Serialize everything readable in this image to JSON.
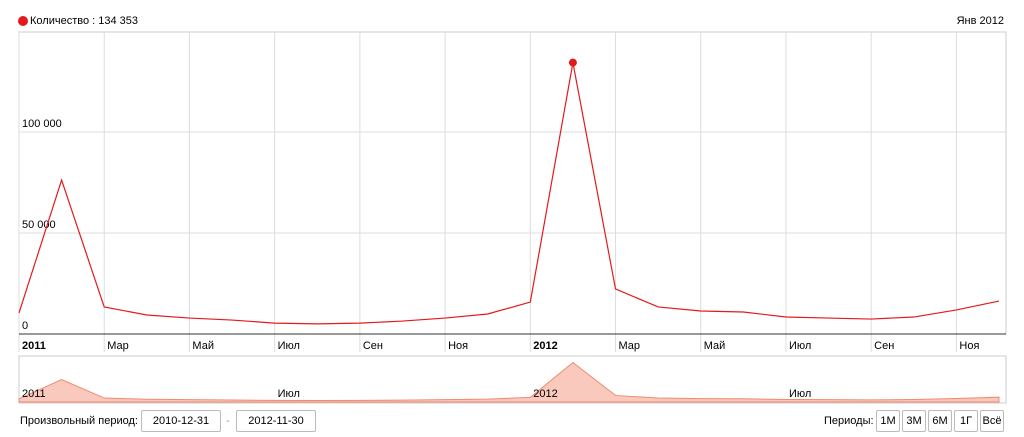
{
  "chart_data": {
    "type": "line",
    "legend_text": "Количество : 134 353",
    "hover_date": "Янв 2012",
    "categories": [
      "2011",
      null,
      "Мар",
      null,
      "Май",
      null,
      "Июл",
      null,
      "Сен",
      null,
      "Ноя",
      null,
      "2012",
      null,
      "Мар",
      null,
      "Май",
      null,
      "Июл",
      null,
      "Сен",
      null,
      "Ноя",
      null
    ],
    "series": [
      {
        "name": "Количество",
        "color": "#e31a1c",
        "values": [
          10400,
          76200,
          13400,
          9400,
          7900,
          6900,
          5400,
          5000,
          5400,
          6400,
          7900,
          9900,
          15800,
          134353,
          22300,
          13400,
          11400,
          10900,
          8400,
          7900,
          7400,
          8400,
          11900,
          16300
        ]
      }
    ],
    "highlight_index": 13,
    "ylim": [
      0,
      149500
    ],
    "yticks": [
      0,
      {
        "value": 50000,
        "label": "50 000"
      },
      {
        "value": 100000,
        "label": "100 000"
      }
    ],
    "grid": true,
    "navigator_labels": [
      "2011",
      "Июл",
      "2012",
      "Июл"
    ]
  },
  "controls": {
    "custom_period_label": "Произвольный период:",
    "date_from": "2010-12-31",
    "date_to": "2012-11-30",
    "periods_label": "Периоды:",
    "period_buttons": [
      "1М",
      "3М",
      "6М",
      "1Г",
      "Всё"
    ]
  }
}
